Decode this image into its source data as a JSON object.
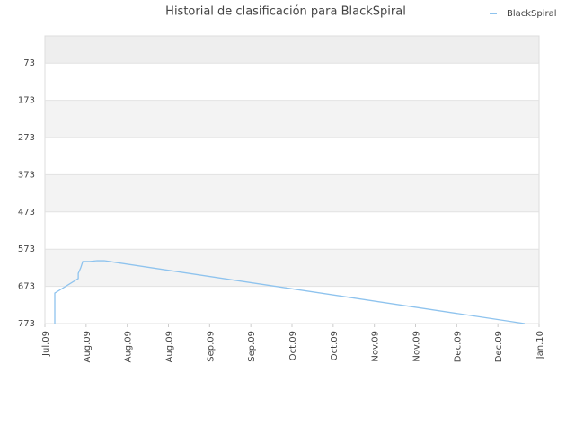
{
  "chart_data": {
    "type": "line",
    "title": "Historial de clasificación para BlackSpiral",
    "x": [
      0.24,
      0.24,
      0.81,
      0.81,
      0.87,
      0.92,
      1.09,
      1.27,
      1.44,
      11.65
    ],
    "series": [
      {
        "name": "BlackSpiral",
        "color": "#8ec3ee",
        "values": [
          773,
          691,
          652,
          638,
          623,
          606,
          606,
          604,
          604,
          773
        ]
      }
    ],
    "xlim": [
      0,
      12
    ],
    "xticks": [
      {
        "value": 0,
        "label": "Jul.09"
      },
      {
        "value": 1,
        "label": "Aug.09"
      },
      {
        "value": 2,
        "label": "Aug.09"
      },
      {
        "value": 3,
        "label": "Aug.09"
      },
      {
        "value": 4,
        "label": "Sep.09"
      },
      {
        "value": 5,
        "label": "Sep.09"
      },
      {
        "value": 6,
        "label": "Oct.09"
      },
      {
        "value": 7,
        "label": "Oct.09"
      },
      {
        "value": 8,
        "label": "Nov.09"
      },
      {
        "value": 9,
        "label": "Nov.09"
      },
      {
        "value": 10,
        "label": "Dec.09"
      },
      {
        "value": 11,
        "label": "Dec.09"
      },
      {
        "value": 12,
        "label": "Jan.10"
      }
    ],
    "ylim": [
      773,
      0
    ],
    "yticks": [
      73,
      173,
      273,
      373,
      473,
      573,
      673,
      773
    ],
    "grid": true,
    "legend": "top-right"
  }
}
